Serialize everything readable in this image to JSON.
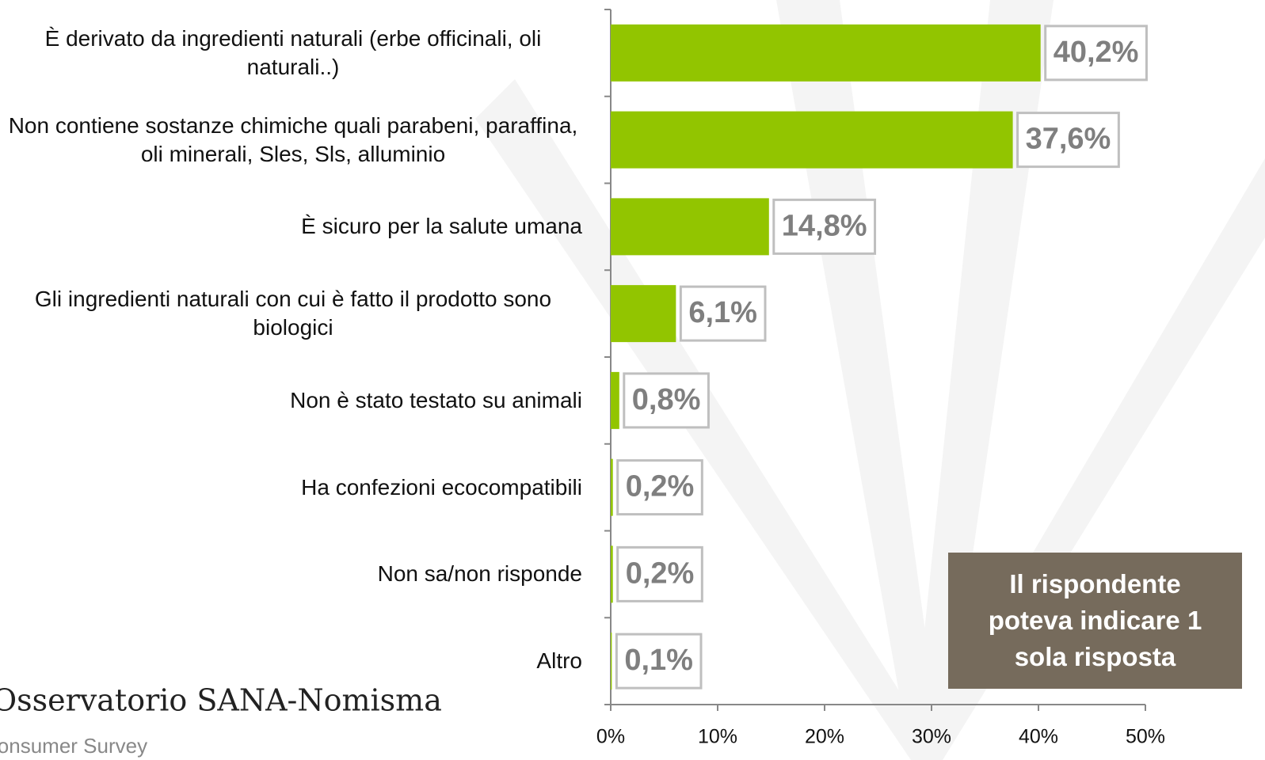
{
  "chart_data": {
    "type": "bar",
    "orientation": "horizontal",
    "categories": [
      "È derivato da ingredienti naturali (erbe officinali, oli naturali..)",
      "Non contiene sostanze chimiche quali parabeni, paraffina, oli minerali, Sles, Sls, alluminio",
      "È sicuro per la salute umana",
      "Gli ingredienti naturali con cui è fatto il prodotto sono biologici",
      "Non è stato testato su animali",
      "Ha confezioni ecocompatibili",
      "Non sa/non risponde",
      "Altro"
    ],
    "values": [
      40.2,
      37.6,
      14.8,
      6.1,
      0.8,
      0.2,
      0.2,
      0.1
    ],
    "value_labels": [
      "40,2%",
      "37,6%",
      "14,8%",
      "6,1%",
      "0,8%",
      "0,2%",
      "0,2%",
      "0,1%"
    ],
    "color": "#92c500",
    "xlim": [
      0,
      50
    ],
    "xticks": [
      {
        "value": 0,
        "label": "0%"
      },
      {
        "value": 10,
        "label": "10%"
      },
      {
        "value": 20,
        "label": "20%"
      },
      {
        "value": 30,
        "label": "30%"
      },
      {
        "value": 40,
        "label": "40%"
      },
      {
        "value": 50,
        "label": "50%"
      }
    ],
    "note": "Il rispondente poteva indicare 1 sola risposta",
    "source_title": "Osservatorio SANA-Nomisma",
    "source_subtitle": "Consumer Survey"
  }
}
